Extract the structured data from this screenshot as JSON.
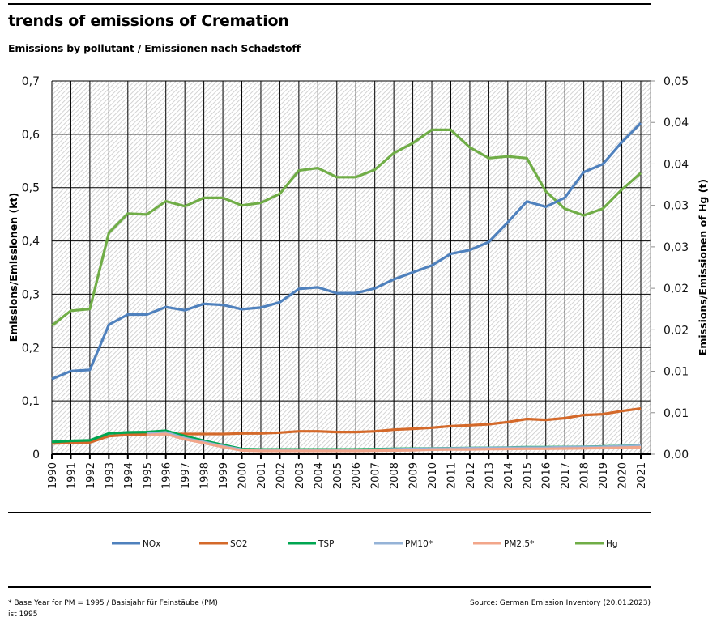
{
  "header": {
    "title": "trends of emissions of Cremation",
    "subtitle": "Emissions by pollutant / Emissionen nach Schadstoff"
  },
  "footer": {
    "footnote": "* Base Year for PM = 1995 / Basisjahr für Feinstäube (PM) ist 1995",
    "source": "Source: German Emission Inventory (20.01.2023)"
  },
  "chart_data": {
    "type": "line",
    "title": "trends of emissions of Cremation",
    "subtitle": "Emissions by pollutant / Emissionen nach Schadstoff",
    "xlabel": "",
    "ylabel": "Emissions/Emissionen (kt)",
    "y2label": "Emissions/Emissionen of Hg (t)",
    "ylim": [
      0,
      0.7
    ],
    "y2lim": [
      0,
      0.045
    ],
    "yticks": [
      0,
      0.1,
      0.2,
      0.3,
      0.4,
      0.5,
      0.6,
      0.7
    ],
    "ytick_labels": [
      "0",
      "0,1",
      "0,2",
      "0,3",
      "0,4",
      "0,5",
      "0,6",
      "0,7"
    ],
    "y2ticks": [
      0,
      0.005,
      0.01,
      0.015,
      0.02,
      0.025,
      0.03,
      0.035,
      0.04,
      0.045
    ],
    "y2tick_labels": [
      "0,00",
      "0,01",
      "0,01",
      "0,02",
      "0,02",
      "0,03",
      "0,03",
      "0,04",
      "0,04",
      "0,05"
    ],
    "grid": true,
    "legend_position": "bottom",
    "x": [
      "1990",
      "1991",
      "1992",
      "1993",
      "1994",
      "1995",
      "1996",
      "1997",
      "1998",
      "1999",
      "2000",
      "2001",
      "2002",
      "2003",
      "2004",
      "2005",
      "2006",
      "2007",
      "2008",
      "2009",
      "2010",
      "2011",
      "2012",
      "2013",
      "2014",
      "2015",
      "2016",
      "2017",
      "2018",
      "2019",
      "2020",
      "2021"
    ],
    "series": [
      {
        "name": "NOx",
        "color": "#4f81bd",
        "axis": "left",
        "values": [
          0.141,
          0.156,
          0.158,
          0.243,
          0.262,
          0.262,
          0.276,
          0.27,
          0.282,
          0.28,
          0.272,
          0.275,
          0.285,
          0.31,
          0.313,
          0.302,
          0.302,
          0.311,
          0.328,
          0.341,
          0.354,
          0.376,
          0.383,
          0.398,
          0.435,
          0.474,
          0.464,
          0.481,
          0.529,
          0.544,
          0.585,
          0.621
        ]
      },
      {
        "name": "SO2",
        "color": "#d4692a",
        "axis": "left",
        "values": [
          0.02,
          0.021,
          0.022,
          0.034,
          0.0365,
          0.0375,
          0.038,
          0.038,
          0.038,
          0.038,
          0.039,
          0.039,
          0.0405,
          0.043,
          0.043,
          0.0416,
          0.0416,
          0.043,
          0.046,
          0.0477,
          0.0497,
          0.0527,
          0.0542,
          0.0562,
          0.0603,
          0.066,
          0.0644,
          0.0675,
          0.0735,
          0.075,
          0.081,
          0.0857
        ]
      },
      {
        "name": "TSP",
        "color": "#00a651",
        "axis": "left",
        "values": [
          0.023,
          0.025,
          0.026,
          0.039,
          0.041,
          0.0416,
          0.044,
          0.034,
          0.0254,
          0.0173,
          0.0097,
          0.009,
          0.009,
          0.009,
          0.009,
          0.009,
          0.009,
          0.0095,
          0.01,
          0.0105,
          0.011,
          0.0112,
          0.0115,
          0.012,
          0.0125,
          0.013,
          0.013,
          0.0135,
          0.014,
          0.0145,
          0.0155,
          0.0162
        ]
      },
      {
        "name": "PM10*",
        "color": "#95b3d7",
        "axis": "left",
        "values": [
          null,
          null,
          null,
          null,
          null,
          0.0386,
          0.041,
          0.03,
          0.023,
          0.015,
          0.0087,
          0.008,
          0.008,
          0.008,
          0.008,
          0.008,
          0.008,
          0.0085,
          0.0092,
          0.0098,
          0.0105,
          0.011,
          0.0112,
          0.0115,
          0.012,
          0.0125,
          0.0125,
          0.013,
          0.0135,
          0.014,
          0.015,
          0.0158
        ]
      },
      {
        "name": "PM2.5*",
        "color": "#f2a68a",
        "axis": "left",
        "values": [
          null,
          null,
          null,
          null,
          null,
          0.036,
          0.038,
          0.028,
          0.021,
          0.0135,
          0.007,
          0.006,
          0.006,
          0.006,
          0.006,
          0.006,
          0.006,
          0.0065,
          0.007,
          0.0075,
          0.0085,
          0.009,
          0.009,
          0.0095,
          0.0098,
          0.0102,
          0.0102,
          0.0106,
          0.011,
          0.0115,
          0.0122,
          0.013
        ]
      },
      {
        "name": "Hg",
        "color": "#70ad47",
        "axis": "right",
        "values": [
          0.0155,
          0.0173,
          0.0175,
          0.0267,
          0.029,
          0.0289,
          0.0305,
          0.0299,
          0.0309,
          0.0309,
          0.03,
          0.0303,
          0.0314,
          0.0342,
          0.0345,
          0.0334,
          0.0334,
          0.0343,
          0.0363,
          0.0375,
          0.0391,
          0.0391,
          0.037,
          0.0357,
          0.0359,
          0.0357,
          0.0317,
          0.0296,
          0.0288,
          0.0296,
          0.0319,
          0.0339
        ]
      }
    ]
  }
}
